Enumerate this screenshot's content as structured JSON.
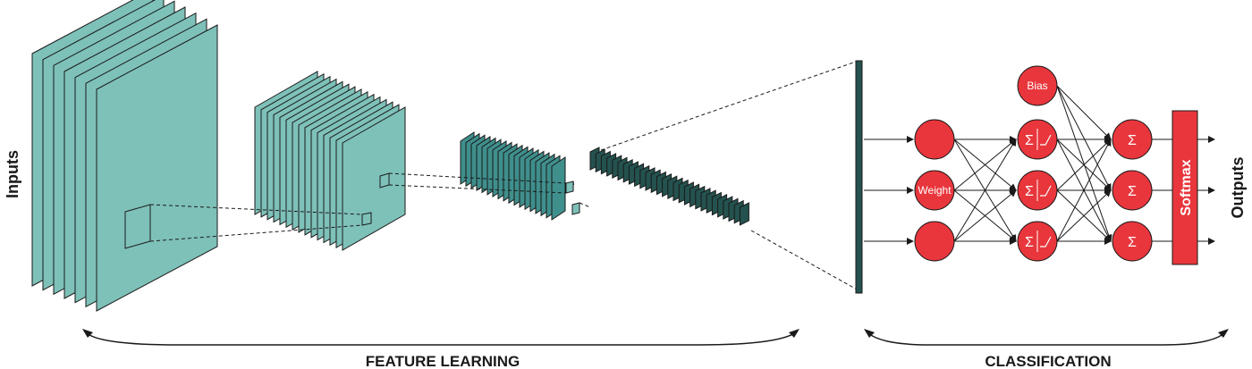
{
  "labels": {
    "inputs": "Inputs",
    "outputs": "Outputs",
    "feature_learning": "FEATURE LEARNING",
    "classification": "CLASSIFICATION",
    "bias": "Bias",
    "weight": "Weight",
    "softmax": "Softmax",
    "sum_symbol": "Σ"
  },
  "colors": {
    "feature_map": "#7ec1b9",
    "feature_map_dark": "#3f8f8c",
    "neuron": "#e8363c",
    "line": "#1a1a1a"
  }
}
